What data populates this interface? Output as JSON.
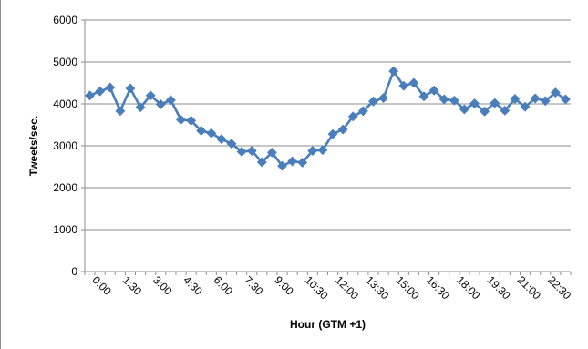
{
  "chart_data": {
    "type": "line",
    "title": "",
    "xlabel": "Hour (GTM +1)",
    "ylabel": "Tweets/sec.",
    "ylim": [
      0,
      6000
    ],
    "yticks": [
      0,
      1000,
      2000,
      3000,
      4000,
      5000,
      6000
    ],
    "x_tick_labels": [
      "0:00",
      "1:30",
      "3:00",
      "4:30",
      "6:00",
      "7:30",
      "9:00",
      "10:30",
      "12:00",
      "13:30",
      "15:00",
      "16:30",
      "18:00",
      "19:30",
      "21:00",
      "22:30"
    ],
    "grid": "horizontal",
    "legend": "none",
    "marker": "diamond",
    "series": [
      {
        "color": "#4a7ebb",
        "x": [
          "0:00",
          "0:30",
          "1:00",
          "1:30",
          "2:00",
          "2:30",
          "3:00",
          "3:30",
          "4:00",
          "4:30",
          "5:00",
          "5:30",
          "6:00",
          "6:30",
          "7:00",
          "7:30",
          "8:00",
          "8:30",
          "9:00",
          "9:30",
          "10:00",
          "10:30",
          "11:00",
          "11:30",
          "12:00",
          "12:30",
          "13:00",
          "13:30",
          "14:00",
          "14:30",
          "15:00",
          "15:30",
          "16:00",
          "16:30",
          "17:00",
          "17:30",
          "18:00",
          "18:30",
          "19:00",
          "19:30",
          "20:00",
          "20:30",
          "21:00",
          "21:30",
          "22:00",
          "22:30",
          "23:00",
          "23:30"
        ],
        "values": [
          4200,
          4300,
          4390,
          3830,
          4370,
          3920,
          4200,
          3990,
          4090,
          3620,
          3600,
          3360,
          3300,
          3160,
          3050,
          2860,
          2880,
          2610,
          2840,
          2520,
          2630,
          2600,
          2880,
          2900,
          3280,
          3390,
          3700,
          3830,
          4060,
          4140,
          4780,
          4430,
          4500,
          4180,
          4320,
          4110,
          4080,
          3870,
          4010,
          3820,
          4020,
          3840,
          4120,
          3930,
          4130,
          4070,
          4270,
          4110
        ]
      }
    ]
  }
}
